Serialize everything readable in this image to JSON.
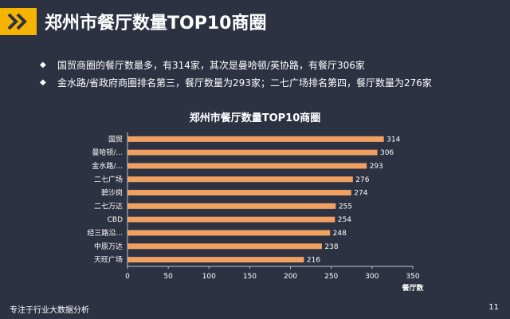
{
  "header": {
    "title": "郑州市餐厅数量TOP10商圈"
  },
  "bullets": [
    "国贸商圈的餐厅数最多，有314家，其次是曼哈顿/英协路，有餐厅306家",
    "金水路/省政府商圈排名第三，餐厅数量为293家；二七广场排名第四，餐厅数量为276家"
  ],
  "bullet_icon": "diamond-icon",
  "footer": {
    "text": "专注于行业大数据分析",
    "page": "11"
  },
  "colors": {
    "background": "#2d3243",
    "accent": "#f4b400",
    "bar": "#f0a060"
  },
  "chart_data": {
    "type": "bar",
    "orientation": "horizontal",
    "title": "郑州市餐厅数量TOP10商圈",
    "categories": [
      "国贸",
      "曼哈顿/...",
      "金水路/...",
      "二七广场",
      "碧沙岗",
      "二七万达",
      "CBD",
      "经三路沿...",
      "中原万达",
      "天旺广场"
    ],
    "values": [
      314,
      306,
      293,
      276,
      274,
      255,
      254,
      248,
      238,
      216
    ],
    "xlabel": "餐厅数",
    "ylabel": "",
    "xlim": [
      0,
      350
    ],
    "xticks": [
      0,
      50,
      100,
      150,
      200,
      250,
      300,
      350
    ],
    "grid": false,
    "legend": "none"
  }
}
